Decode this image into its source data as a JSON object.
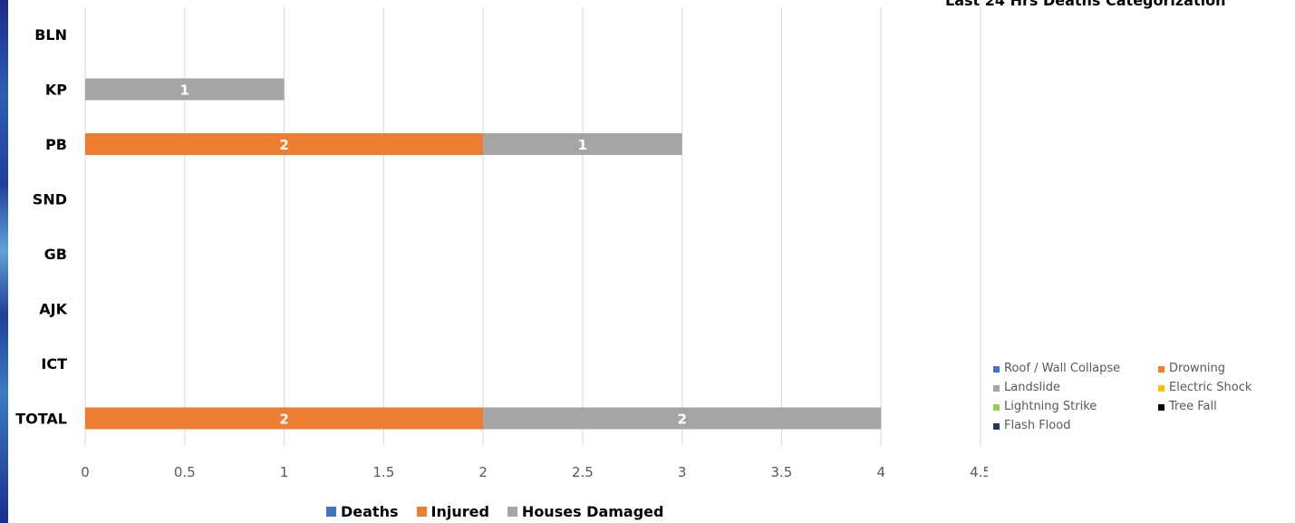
{
  "chart_data": [
    {
      "type": "bar",
      "orientation": "horizontal",
      "stacked": true,
      "categories": [
        "BLN",
        "KP",
        "PB",
        "SND",
        "GB",
        "AJK",
        "ICT",
        "TOTAL"
      ],
      "series": [
        {
          "name": "Deaths",
          "color": "#4472C4",
          "values": [
            0,
            0,
            0,
            0,
            0,
            0,
            0,
            0
          ]
        },
        {
          "name": "Injured",
          "color": "#ED7D31",
          "values": [
            0,
            0,
            2,
            0,
            0,
            0,
            0,
            2
          ]
        },
        {
          "name": "Houses Damaged",
          "color": "#A5A5A5",
          "values": [
            0,
            1,
            1,
            0,
            0,
            0,
            0,
            2
          ]
        }
      ],
      "xlim": [
        0,
        4.5
      ],
      "xticks": [
        "0",
        "0.5",
        "1",
        "1.5",
        "2",
        "2.5",
        "3",
        "3.5",
        "4",
        "4.5"
      ],
      "grid": true,
      "legend_position": "bottom"
    },
    {
      "type": "pie",
      "title": "Last 24 Hrs Deaths Categorization",
      "legend_position": "bottom-right",
      "categories": [
        {
          "name": "Roof / Wall Collapse",
          "color": "#4472C4"
        },
        {
          "name": "Drowning",
          "color": "#ED7D31"
        },
        {
          "name": "Landslide",
          "color": "#A5A5A5"
        },
        {
          "name": "Electric Shock",
          "color": "#FFC000"
        },
        {
          "name": "Lightning Strike",
          "color": "#92D050"
        },
        {
          "name": "Tree Fall",
          "color": "#000000"
        },
        {
          "name": "Flash Flood",
          "color": "#1F3864"
        }
      ]
    }
  ]
}
